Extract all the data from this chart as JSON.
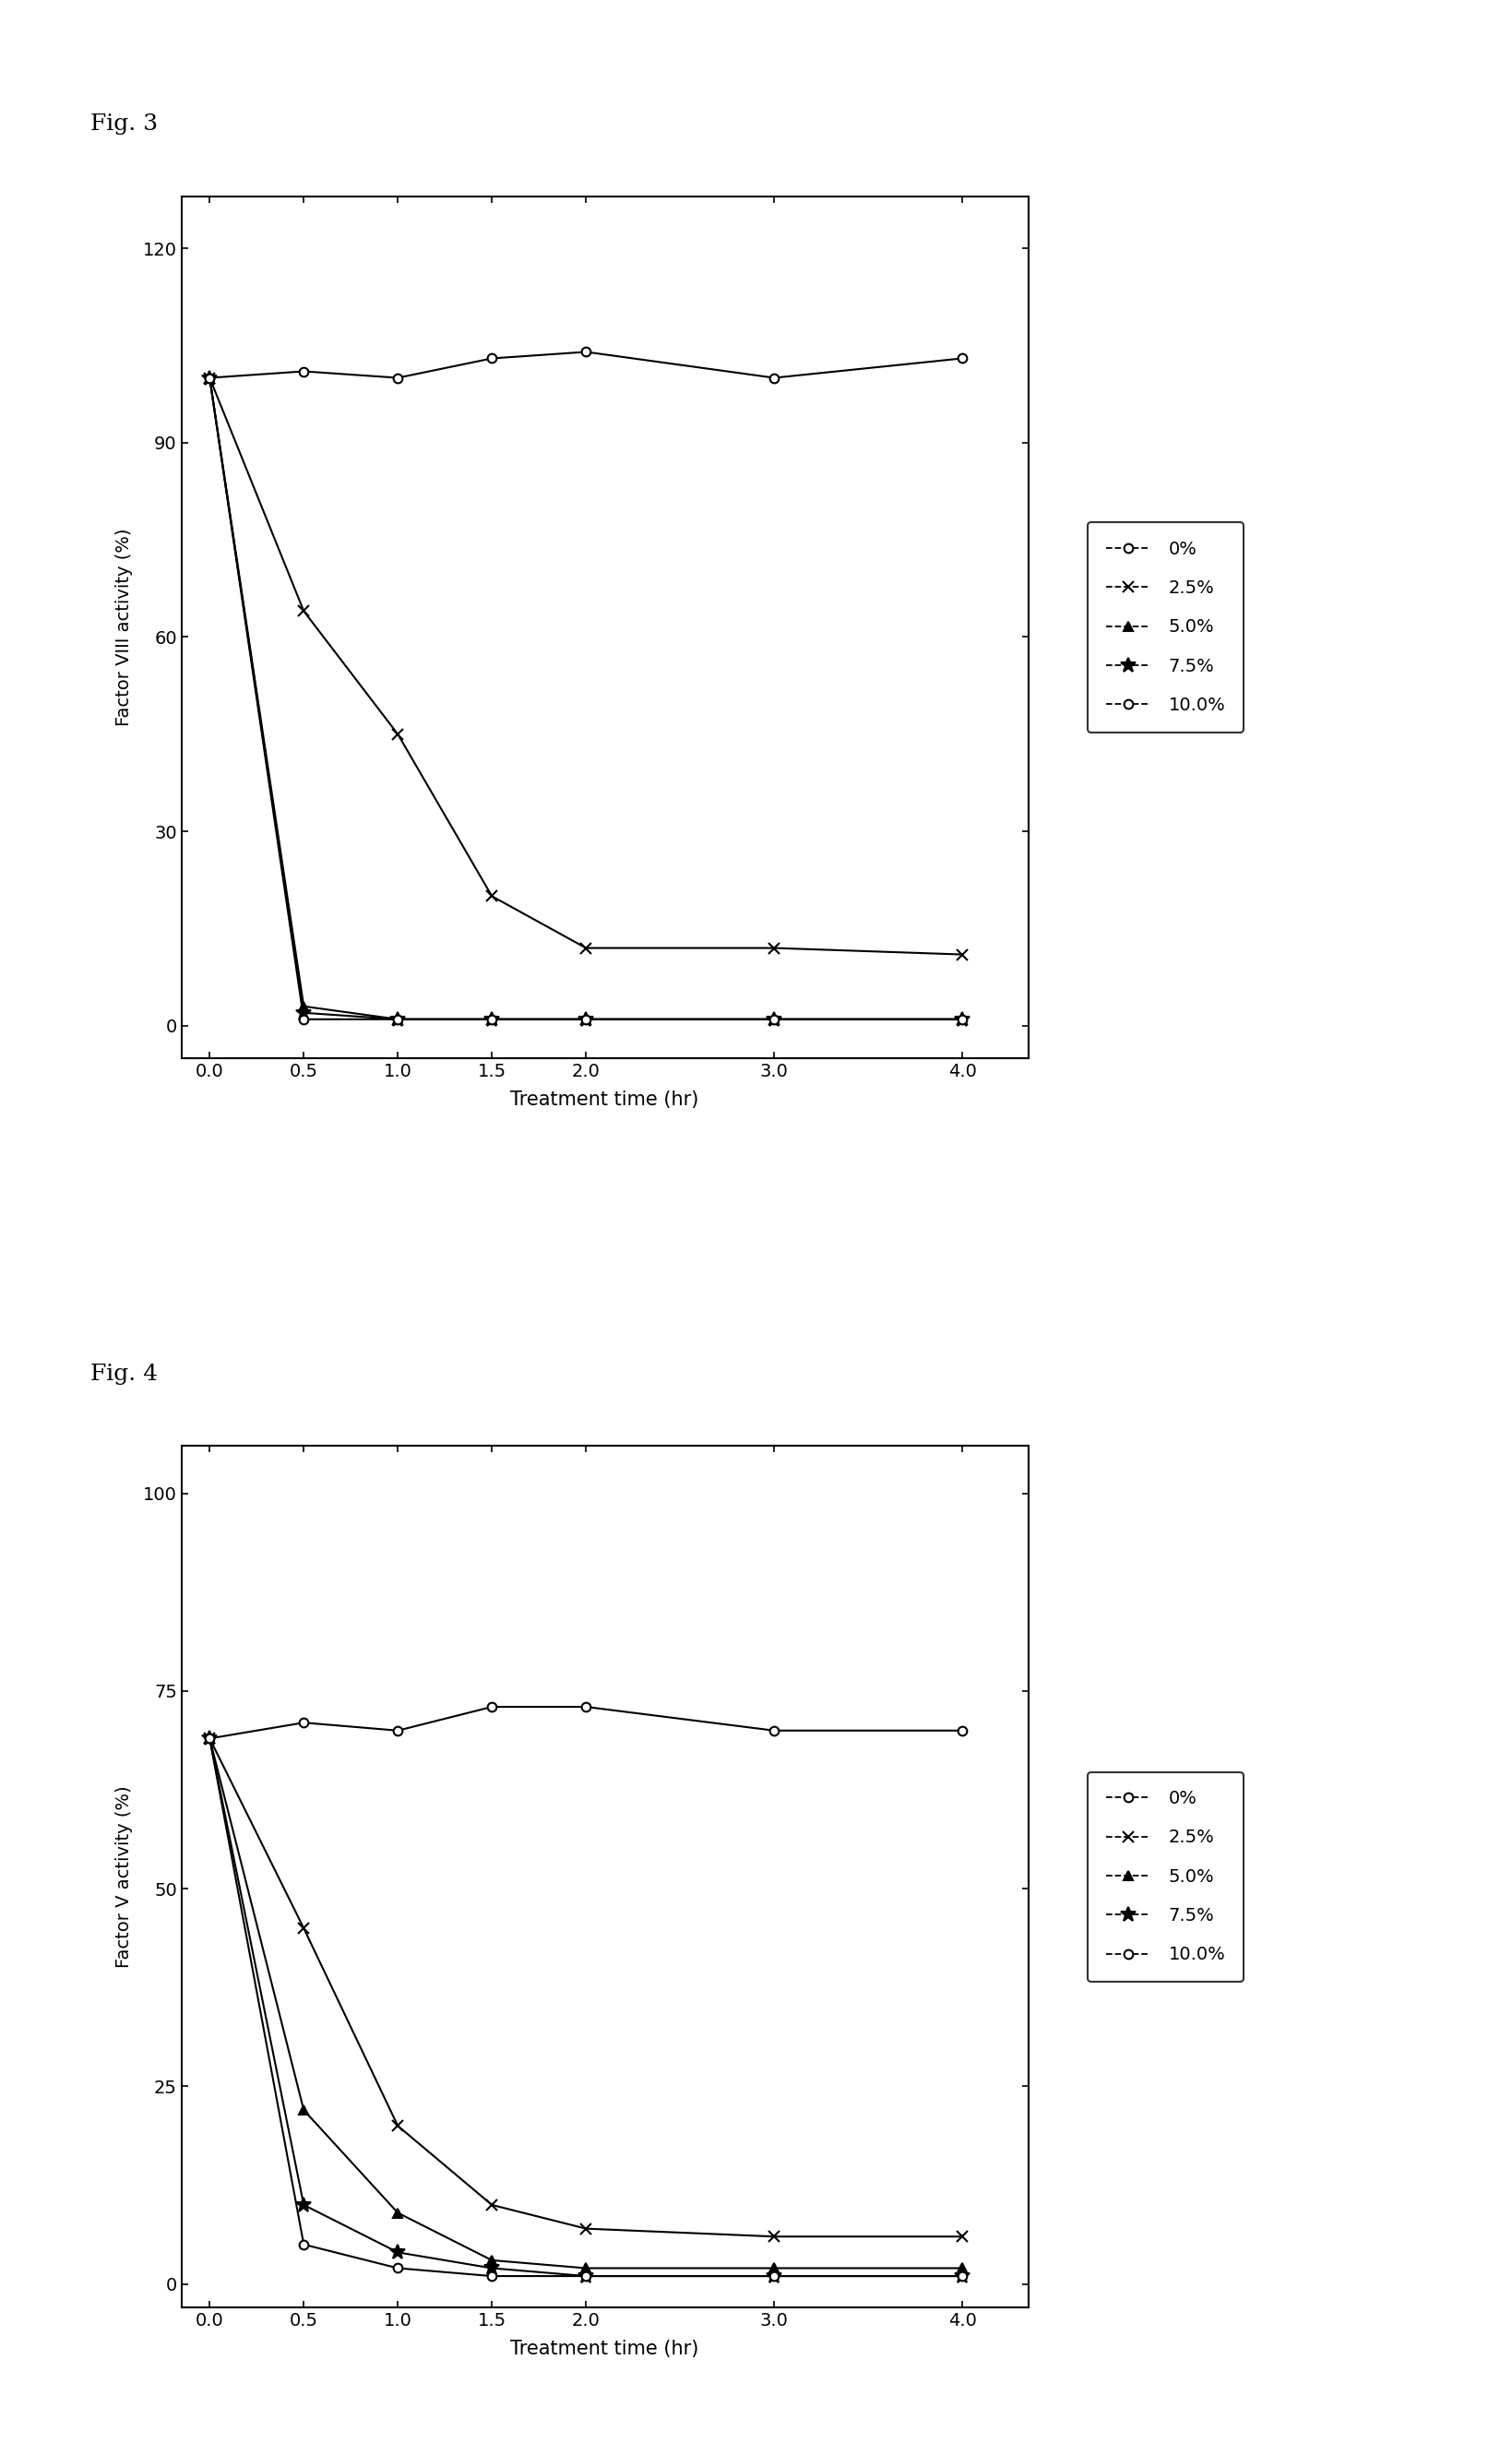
{
  "fig3": {
    "ylabel": "Factor VIII activity (%)",
    "xlabel": "Treatment time (hr)",
    "xlim": [
      -0.15,
      4.35
    ],
    "ylim": [
      -5,
      128
    ],
    "yticks": [
      0,
      30,
      60,
      90,
      120
    ],
    "xticks": [
      0.0,
      0.5,
      1.0,
      1.5,
      2.0,
      3.0,
      4.0
    ],
    "xticklabels": [
      "0.0",
      "0.5",
      "1.0",
      "1.5",
      "2.0",
      "3.0",
      "4.0"
    ],
    "series": [
      {
        "label": "0%",
        "x": [
          0.0,
          0.5,
          1.0,
          1.5,
          2.0,
          3.0,
          4.0
        ],
        "y": [
          100,
          101,
          100,
          103,
          104,
          100,
          103
        ],
        "marker": "o",
        "mfc": "white",
        "linestyle": "-"
      },
      {
        "label": "2.5%",
        "x": [
          0.0,
          0.5,
          1.0,
          1.5,
          2.0,
          3.0,
          4.0
        ],
        "y": [
          100,
          64,
          45,
          20,
          12,
          12,
          11
        ],
        "marker": "x",
        "mfc": "black",
        "linestyle": "-"
      },
      {
        "label": "5.0%",
        "x": [
          0.0,
          0.5,
          1.0,
          1.5,
          2.0,
          3.0,
          4.0
        ],
        "y": [
          100,
          3,
          1,
          1,
          1,
          1,
          1
        ],
        "marker": "^",
        "mfc": "black",
        "linestyle": "-"
      },
      {
        "label": "7.5%",
        "x": [
          0.0,
          0.5,
          1.0,
          1.5,
          2.0,
          3.0,
          4.0
        ],
        "y": [
          100,
          2,
          1,
          1,
          1,
          1,
          1
        ],
        "marker": "*",
        "mfc": "black",
        "linestyle": "-"
      },
      {
        "label": "10.0%",
        "x": [
          0.0,
          0.5,
          1.0,
          1.5,
          2.0,
          3.0,
          4.0
        ],
        "y": [
          100,
          1,
          1,
          1,
          1,
          1,
          1
        ],
        "marker": "o",
        "mfc": "white",
        "linestyle": "-"
      }
    ]
  },
  "fig4": {
    "ylabel": "Factor V activity (%)",
    "xlabel": "Treatment time (hr)",
    "xlim": [
      -0.15,
      4.35
    ],
    "ylim": [
      -3,
      106
    ],
    "yticks": [
      0,
      25,
      50,
      75,
      100
    ],
    "xticks": [
      0.0,
      0.5,
      1.0,
      1.5,
      2.0,
      3.0,
      4.0
    ],
    "xticklabels": [
      "0.0",
      "0.5",
      "1.0",
      "1.5",
      "2.0",
      "3.0",
      "4.0"
    ],
    "series": [
      {
        "label": "0%",
        "x": [
          0.0,
          0.5,
          1.0,
          1.5,
          2.0,
          3.0,
          4.0
        ],
        "y": [
          69,
          71,
          70,
          73,
          73,
          70,
          70
        ],
        "marker": "o",
        "mfc": "white",
        "linestyle": "-"
      },
      {
        "label": "2.5%",
        "x": [
          0.0,
          0.5,
          1.0,
          1.5,
          2.0,
          3.0,
          4.0
        ],
        "y": [
          69,
          45,
          20,
          10,
          7,
          6,
          6
        ],
        "marker": "x",
        "mfc": "black",
        "linestyle": "-"
      },
      {
        "label": "5.0%",
        "x": [
          0.0,
          0.5,
          1.0,
          1.5,
          2.0,
          3.0,
          4.0
        ],
        "y": [
          69,
          22,
          9,
          3,
          2,
          2,
          2
        ],
        "marker": "^",
        "mfc": "black",
        "linestyle": "-"
      },
      {
        "label": "7.5%",
        "x": [
          0.0,
          0.5,
          1.0,
          1.5,
          2.0,
          3.0,
          4.0
        ],
        "y": [
          69,
          10,
          4,
          2,
          1,
          1,
          1
        ],
        "marker": "*",
        "mfc": "black",
        "linestyle": "-"
      },
      {
        "label": "10.0%",
        "x": [
          0.0,
          0.5,
          1.0,
          1.5,
          2.0,
          3.0,
          4.0
        ],
        "y": [
          69,
          5,
          2,
          1,
          1,
          1,
          1
        ],
        "marker": "o",
        "mfc": "white",
        "linestyle": "-"
      }
    ]
  },
  "fig3_label": "Fig. 3",
  "fig4_label": "Fig. 4",
  "line_color": "#000000",
  "background": "#ffffff",
  "marker_sizes": [
    7,
    8,
    7,
    12,
    7
  ],
  "legend_linestyle": "--"
}
